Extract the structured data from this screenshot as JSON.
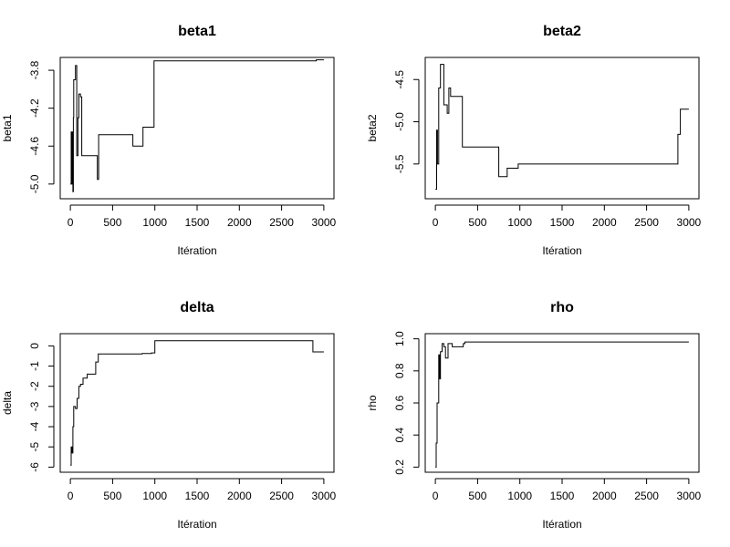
{
  "chart_data": [
    {
      "type": "line",
      "title": "beta1",
      "xlabel": "Itération",
      "ylabel": "beta1",
      "xlim": [
        0,
        3000
      ],
      "ylim": [
        -5.1,
        -3.72
      ],
      "x_ticks": [
        0,
        500,
        1000,
        1500,
        2000,
        2500,
        3000
      ],
      "y_ticks": [
        -5.0,
        -4.6,
        -4.2,
        -3.8
      ],
      "y_tick_labels": [
        "-5.0",
        "-4.6",
        "-4.2",
        "-3.8"
      ],
      "grid": false,
      "step": true,
      "series": [
        {
          "x": [
            0,
            10,
            15,
            25,
            30,
            35,
            40,
            50,
            60,
            75,
            90,
            100,
            120,
            135,
            160,
            170,
            320,
            335,
            350,
            740,
            850,
            860,
            980,
            990,
            2900,
            2910,
            3000
          ],
          "y": [
            -5.0,
            -4.45,
            -5.0,
            -4.45,
            -5.08,
            -4.3,
            -3.9,
            -3.9,
            -3.75,
            -4.7,
            -4.3,
            -4.05,
            -4.08,
            -4.7,
            -4.7,
            -4.7,
            -4.95,
            -4.48,
            -4.48,
            -4.6,
            -4.6,
            -4.4,
            -4.4,
            -3.7,
            -3.7,
            -3.69,
            -3.69
          ]
        }
      ]
    },
    {
      "type": "line",
      "title": "beta2",
      "xlabel": "Itération",
      "ylabel": "beta2",
      "xlim": [
        0,
        3000
      ],
      "ylim": [
        -5.85,
        -4.3
      ],
      "x_ticks": [
        0,
        500,
        1000,
        1500,
        2000,
        2500,
        3000
      ],
      "y_ticks": [
        -5.5,
        -5.0,
        -4.5
      ],
      "y_tick_labels": [
        "-5.5",
        "-5.0",
        "-4.5"
      ],
      "grid": false,
      "step": true,
      "series": [
        {
          "x": [
            0,
            15,
            25,
            40,
            60,
            70,
            100,
            120,
            140,
            160,
            180,
            220,
            320,
            340,
            750,
            850,
            980,
            1000,
            2850,
            2870,
            2900,
            3000
          ],
          "y": [
            -5.8,
            -5.1,
            -5.5,
            -4.6,
            -4.32,
            -4.32,
            -4.8,
            -4.8,
            -4.9,
            -4.6,
            -4.7,
            -4.7,
            -5.3,
            -5.3,
            -5.65,
            -5.55,
            -5.5,
            -5.5,
            -5.5,
            -5.15,
            -4.85,
            -4.85
          ]
        }
      ]
    },
    {
      "type": "line",
      "title": "delta",
      "xlabel": "Itération",
      "ylabel": "delta",
      "xlim": [
        0,
        3000
      ],
      "ylim": [
        -6,
        0.35
      ],
      "x_ticks": [
        0,
        500,
        1000,
        1500,
        2000,
        2500,
        3000
      ],
      "y_ticks": [
        -6,
        -5,
        -4,
        -3,
        -2,
        -1,
        0
      ],
      "y_tick_labels": [
        "-6",
        "-5",
        "-4",
        "-3",
        "-2",
        "-1",
        "0"
      ],
      "grid": false,
      "step": true,
      "series": [
        {
          "x": [
            0,
            10,
            20,
            30,
            40,
            60,
            80,
            100,
            120,
            150,
            200,
            250,
            300,
            330,
            750,
            850,
            960,
            1000,
            2850,
            2870,
            3000
          ],
          "y": [
            -5.9,
            -5.0,
            -5.3,
            -4.0,
            -3.0,
            -3.1,
            -2.6,
            -2.0,
            -1.9,
            -1.6,
            -1.4,
            -1.4,
            -0.8,
            -0.4,
            -0.4,
            -0.38,
            -0.35,
            0.25,
            0.25,
            -0.3,
            -0.3
          ]
        }
      ]
    },
    {
      "type": "line",
      "title": "rho",
      "xlabel": "Itération",
      "ylabel": "rho",
      "xlim": [
        0,
        3000
      ],
      "ylim": [
        0.2,
        1.0
      ],
      "x_ticks": [
        0,
        500,
        1000,
        1500,
        2000,
        2500,
        3000
      ],
      "y_ticks": [
        0.2,
        0.4,
        0.6,
        0.8,
        1.0
      ],
      "y_tick_labels": [
        "0.2",
        "0.4",
        "0.6",
        "0.8",
        "1.0"
      ],
      "grid": false,
      "step": true,
      "series": [
        {
          "x": [
            0,
            10,
            20,
            40,
            50,
            60,
            80,
            100,
            120,
            150,
            200,
            330,
            350,
            3000
          ],
          "y": [
            0.2,
            0.35,
            0.6,
            0.9,
            0.75,
            0.92,
            0.97,
            0.95,
            0.88,
            0.97,
            0.95,
            0.97,
            0.98,
            0.98
          ]
        }
      ]
    }
  ]
}
